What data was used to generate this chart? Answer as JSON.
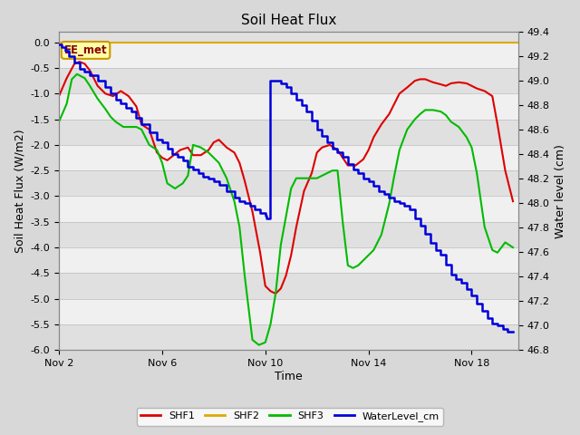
{
  "title": "Soil Heat Flux",
  "ylabel_left": "Soil Heat Flux (W/m2)",
  "ylabel_right": "Water level (cm)",
  "xlabel": "Time",
  "ylim_left": [
    -6.0,
    0.2
  ],
  "ylim_right": [
    46.8,
    49.4
  ],
  "xtick_labels": [
    "Nov 2",
    "Nov 6",
    "Nov 10",
    "Nov 14",
    "Nov 18"
  ],
  "xtick_positions": [
    2,
    6,
    10,
    14,
    18
  ],
  "xlim": [
    2,
    19.8
  ],
  "bg_color": "#d8d8d8",
  "plot_bg_color": "#e0e0e0",
  "stripe_color": "#f0f0f0",
  "colors": {
    "SHF1": "#dd0000",
    "SHF2": "#ddaa00",
    "SHF3": "#00bb00",
    "WaterLevel": "#0000dd"
  },
  "annotation_text": "EE_met",
  "annotation_color": "#880000",
  "annotation_bg": "#ffffaa",
  "annotation_border": "#cc9900",
  "shf2_y": 0.0,
  "shf1_x": [
    2.0,
    2.3,
    2.6,
    2.8,
    3.0,
    3.2,
    3.5,
    3.8,
    4.1,
    4.4,
    4.7,
    5.0,
    5.2,
    5.5,
    5.8,
    6.0,
    6.2,
    6.4,
    6.7,
    7.0,
    7.2,
    7.5,
    7.8,
    8.0,
    8.2,
    8.5,
    8.8,
    9.0,
    9.2,
    9.5,
    9.8,
    10.0,
    10.2,
    10.4,
    10.6,
    10.8,
    11.0,
    11.2,
    11.5,
    11.8,
    12.0,
    12.2,
    12.5,
    12.8,
    13.0,
    13.2,
    13.5,
    13.8,
    14.0,
    14.2,
    14.5,
    14.8,
    15.0,
    15.2,
    15.5,
    15.8,
    16.0,
    16.2,
    16.5,
    16.8,
    17.0,
    17.2,
    17.5,
    17.8,
    18.0,
    18.2,
    18.5,
    18.8,
    19.0,
    19.3,
    19.6
  ],
  "shf1_y": [
    -1.05,
    -0.7,
    -0.42,
    -0.38,
    -0.42,
    -0.55,
    -0.85,
    -1.0,
    -1.05,
    -0.95,
    -1.05,
    -1.25,
    -1.6,
    -1.7,
    -2.15,
    -2.25,
    -2.3,
    -2.22,
    -2.1,
    -2.05,
    -2.2,
    -2.2,
    -2.1,
    -1.95,
    -1.9,
    -2.05,
    -2.15,
    -2.35,
    -2.7,
    -3.3,
    -4.1,
    -4.75,
    -4.85,
    -4.9,
    -4.8,
    -4.55,
    -4.15,
    -3.6,
    -2.9,
    -2.55,
    -2.15,
    -2.05,
    -2.0,
    -2.1,
    -2.25,
    -2.4,
    -2.4,
    -2.28,
    -2.1,
    -1.85,
    -1.6,
    -1.4,
    -1.2,
    -1.0,
    -0.88,
    -0.75,
    -0.72,
    -0.72,
    -0.78,
    -0.82,
    -0.85,
    -0.8,
    -0.78,
    -0.8,
    -0.85,
    -0.9,
    -0.95,
    -1.05,
    -1.6,
    -2.5,
    -3.1
  ],
  "shf3_x": [
    2.0,
    2.3,
    2.5,
    2.7,
    3.0,
    3.2,
    3.5,
    3.8,
    4.0,
    4.2,
    4.5,
    4.8,
    5.0,
    5.2,
    5.5,
    5.8,
    6.0,
    6.2,
    6.5,
    6.8,
    7.0,
    7.2,
    7.5,
    7.8,
    8.0,
    8.2,
    8.5,
    8.8,
    9.0,
    9.2,
    9.5,
    9.75,
    10.0,
    10.2,
    10.4,
    10.6,
    10.8,
    11.0,
    11.2,
    11.5,
    11.8,
    12.0,
    12.2,
    12.4,
    12.6,
    12.8,
    13.0,
    13.2,
    13.4,
    13.6,
    13.9,
    14.2,
    14.5,
    14.8,
    15.0,
    15.2,
    15.5,
    15.8,
    16.0,
    16.2,
    16.5,
    16.8,
    17.0,
    17.2,
    17.5,
    17.8,
    18.0,
    18.2,
    18.5,
    18.8,
    19.0,
    19.3,
    19.6
  ],
  "shf3_y": [
    -1.55,
    -1.2,
    -0.72,
    -0.62,
    -0.7,
    -0.85,
    -1.1,
    -1.3,
    -1.45,
    -1.55,
    -1.65,
    -1.65,
    -1.65,
    -1.7,
    -2.0,
    -2.1,
    -2.35,
    -2.75,
    -2.85,
    -2.75,
    -2.6,
    -2.0,
    -2.05,
    -2.15,
    -2.25,
    -2.35,
    -2.65,
    -3.1,
    -3.6,
    -4.55,
    -5.8,
    -5.9,
    -5.85,
    -5.5,
    -4.9,
    -3.95,
    -3.4,
    -2.85,
    -2.65,
    -2.65,
    -2.65,
    -2.65,
    -2.6,
    -2.55,
    -2.5,
    -2.5,
    -3.5,
    -4.35,
    -4.4,
    -4.35,
    -4.2,
    -4.05,
    -3.75,
    -3.15,
    -2.6,
    -2.1,
    -1.7,
    -1.5,
    -1.4,
    -1.32,
    -1.32,
    -1.35,
    -1.42,
    -1.55,
    -1.65,
    -1.85,
    -2.05,
    -2.55,
    -3.6,
    -4.05,
    -4.1,
    -3.9,
    -4.0
  ],
  "water_x": [
    2.0,
    2.1,
    2.25,
    2.4,
    2.6,
    2.8,
    3.0,
    3.2,
    3.5,
    3.8,
    4.0,
    4.2,
    4.4,
    4.6,
    4.8,
    5.0,
    5.2,
    5.5,
    5.8,
    6.0,
    6.2,
    6.4,
    6.6,
    6.8,
    7.0,
    7.2,
    7.4,
    7.6,
    7.8,
    8.0,
    8.2,
    8.5,
    8.8,
    9.0,
    9.2,
    9.4,
    9.6,
    9.8,
    10.0,
    10.05,
    10.2,
    10.4,
    10.6,
    10.8,
    11.0,
    11.2,
    11.4,
    11.6,
    11.8,
    12.0,
    12.2,
    12.4,
    12.6,
    12.8,
    13.0,
    13.2,
    13.4,
    13.6,
    13.8,
    14.0,
    14.2,
    14.4,
    14.6,
    14.8,
    15.0,
    15.2,
    15.4,
    15.6,
    15.8,
    16.0,
    16.2,
    16.4,
    16.6,
    16.8,
    17.0,
    17.2,
    17.4,
    17.6,
    17.8,
    18.0,
    18.2,
    18.4,
    18.6,
    18.8,
    19.0,
    19.2,
    19.4,
    19.6
  ],
  "water_y_cm": [
    49.3,
    49.28,
    49.25,
    49.2,
    49.15,
    49.1,
    49.08,
    49.05,
    49.0,
    48.95,
    48.9,
    48.85,
    48.82,
    48.78,
    48.75,
    48.7,
    48.65,
    48.58,
    48.52,
    48.5,
    48.45,
    48.4,
    48.38,
    48.35,
    48.3,
    48.28,
    48.25,
    48.22,
    48.2,
    48.18,
    48.15,
    48.1,
    48.05,
    48.02,
    48.0,
    47.98,
    47.95,
    47.92,
    47.9,
    47.88,
    49.0,
    49.0,
    48.98,
    48.95,
    48.9,
    48.85,
    48.8,
    48.75,
    48.68,
    48.6,
    48.55,
    48.5,
    48.45,
    48.42,
    48.38,
    48.32,
    48.28,
    48.25,
    48.2,
    48.18,
    48.14,
    48.1,
    48.08,
    48.05,
    48.02,
    48.0,
    47.98,
    47.95,
    47.88,
    47.82,
    47.75,
    47.68,
    47.62,
    47.58,
    47.5,
    47.42,
    47.38,
    47.35,
    47.3,
    47.25,
    47.18,
    47.12,
    47.06,
    47.02,
    47.0,
    46.97,
    46.95,
    46.95
  ]
}
